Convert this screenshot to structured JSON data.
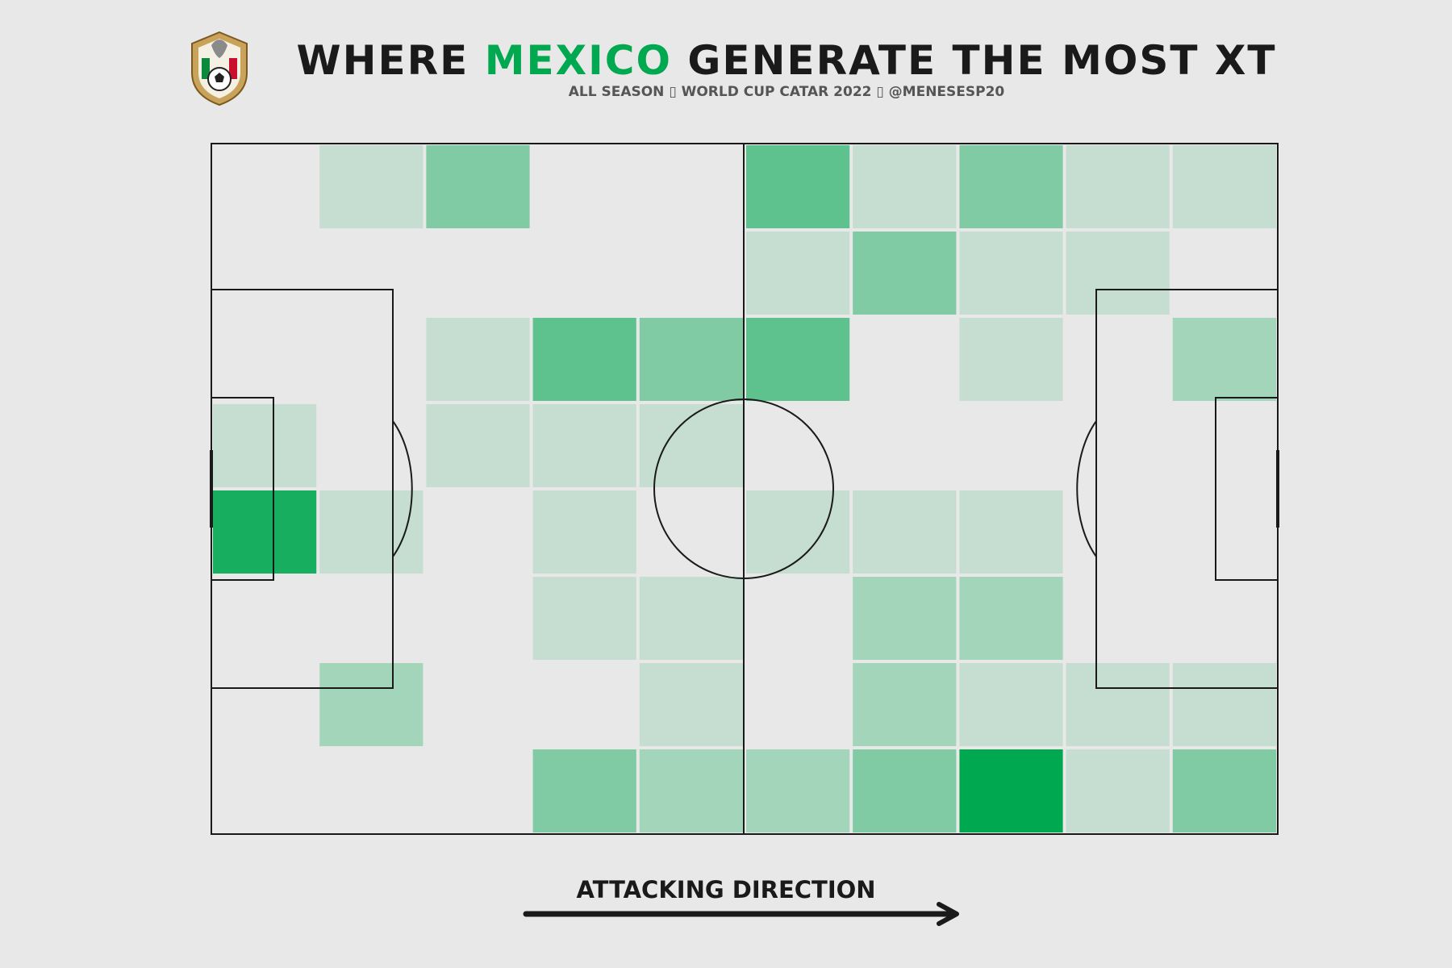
{
  "header": {
    "title_prefix": "WHERE ",
    "title_highlight": "MEXICO",
    "title_suffix": " GENERATE THE MOST XT",
    "subtitle": "ALL SEASON ▯ WORLD CUP CATAR 2022 ▯ @MENESESP20",
    "logo_icon": "mexico-federation-crest-icon"
  },
  "colors": {
    "background": "#e8e8e8",
    "highlight": "#00a850",
    "lines": "#1a1a1a"
  },
  "chart_data": {
    "type": "heatmap",
    "title": "WHERE MEXICO GENERATE THE MOST XT",
    "subtitle": "ALL SEASON ▯ WORLD CUP CATAR 2022 ▯ @MENESESP20",
    "attacking_direction": "left-to-right",
    "grid": {
      "columns": 10,
      "rows": 8
    },
    "color_scale": {
      "low": "#e8e8e8",
      "high": "#00a850"
    },
    "intensity": [
      [
        0,
        0.15,
        0.45,
        0,
        0,
        0.6,
        0.15,
        0.45,
        0.15,
        0.15
      ],
      [
        0,
        0,
        0,
        0,
        0,
        0.15,
        0.45,
        0.15,
        0.15,
        0
      ],
      [
        0,
        0,
        0.15,
        0.6,
        0.45,
        0.6,
        0,
        0.15,
        0,
        0.3
      ],
      [
        0.15,
        0,
        0.15,
        0.15,
        0.15,
        0,
        0,
        0,
        0,
        0
      ],
      [
        0.9,
        0.15,
        0,
        0.15,
        0,
        0.15,
        0.15,
        0.15,
        0,
        0
      ],
      [
        0,
        0,
        0,
        0.15,
        0.15,
        0,
        0.3,
        0.3,
        0,
        0
      ],
      [
        0,
        0.3,
        0,
        0,
        0.15,
        0,
        0.3,
        0.15,
        0.15,
        0.15
      ],
      [
        0,
        0,
        0,
        0.45,
        0.3,
        0.3,
        0.45,
        1.0,
        0.15,
        0.45
      ]
    ]
  },
  "footer": {
    "direction_label": "ATTACKING DIRECTION",
    "arrow_icon": "right-arrow-icon"
  }
}
